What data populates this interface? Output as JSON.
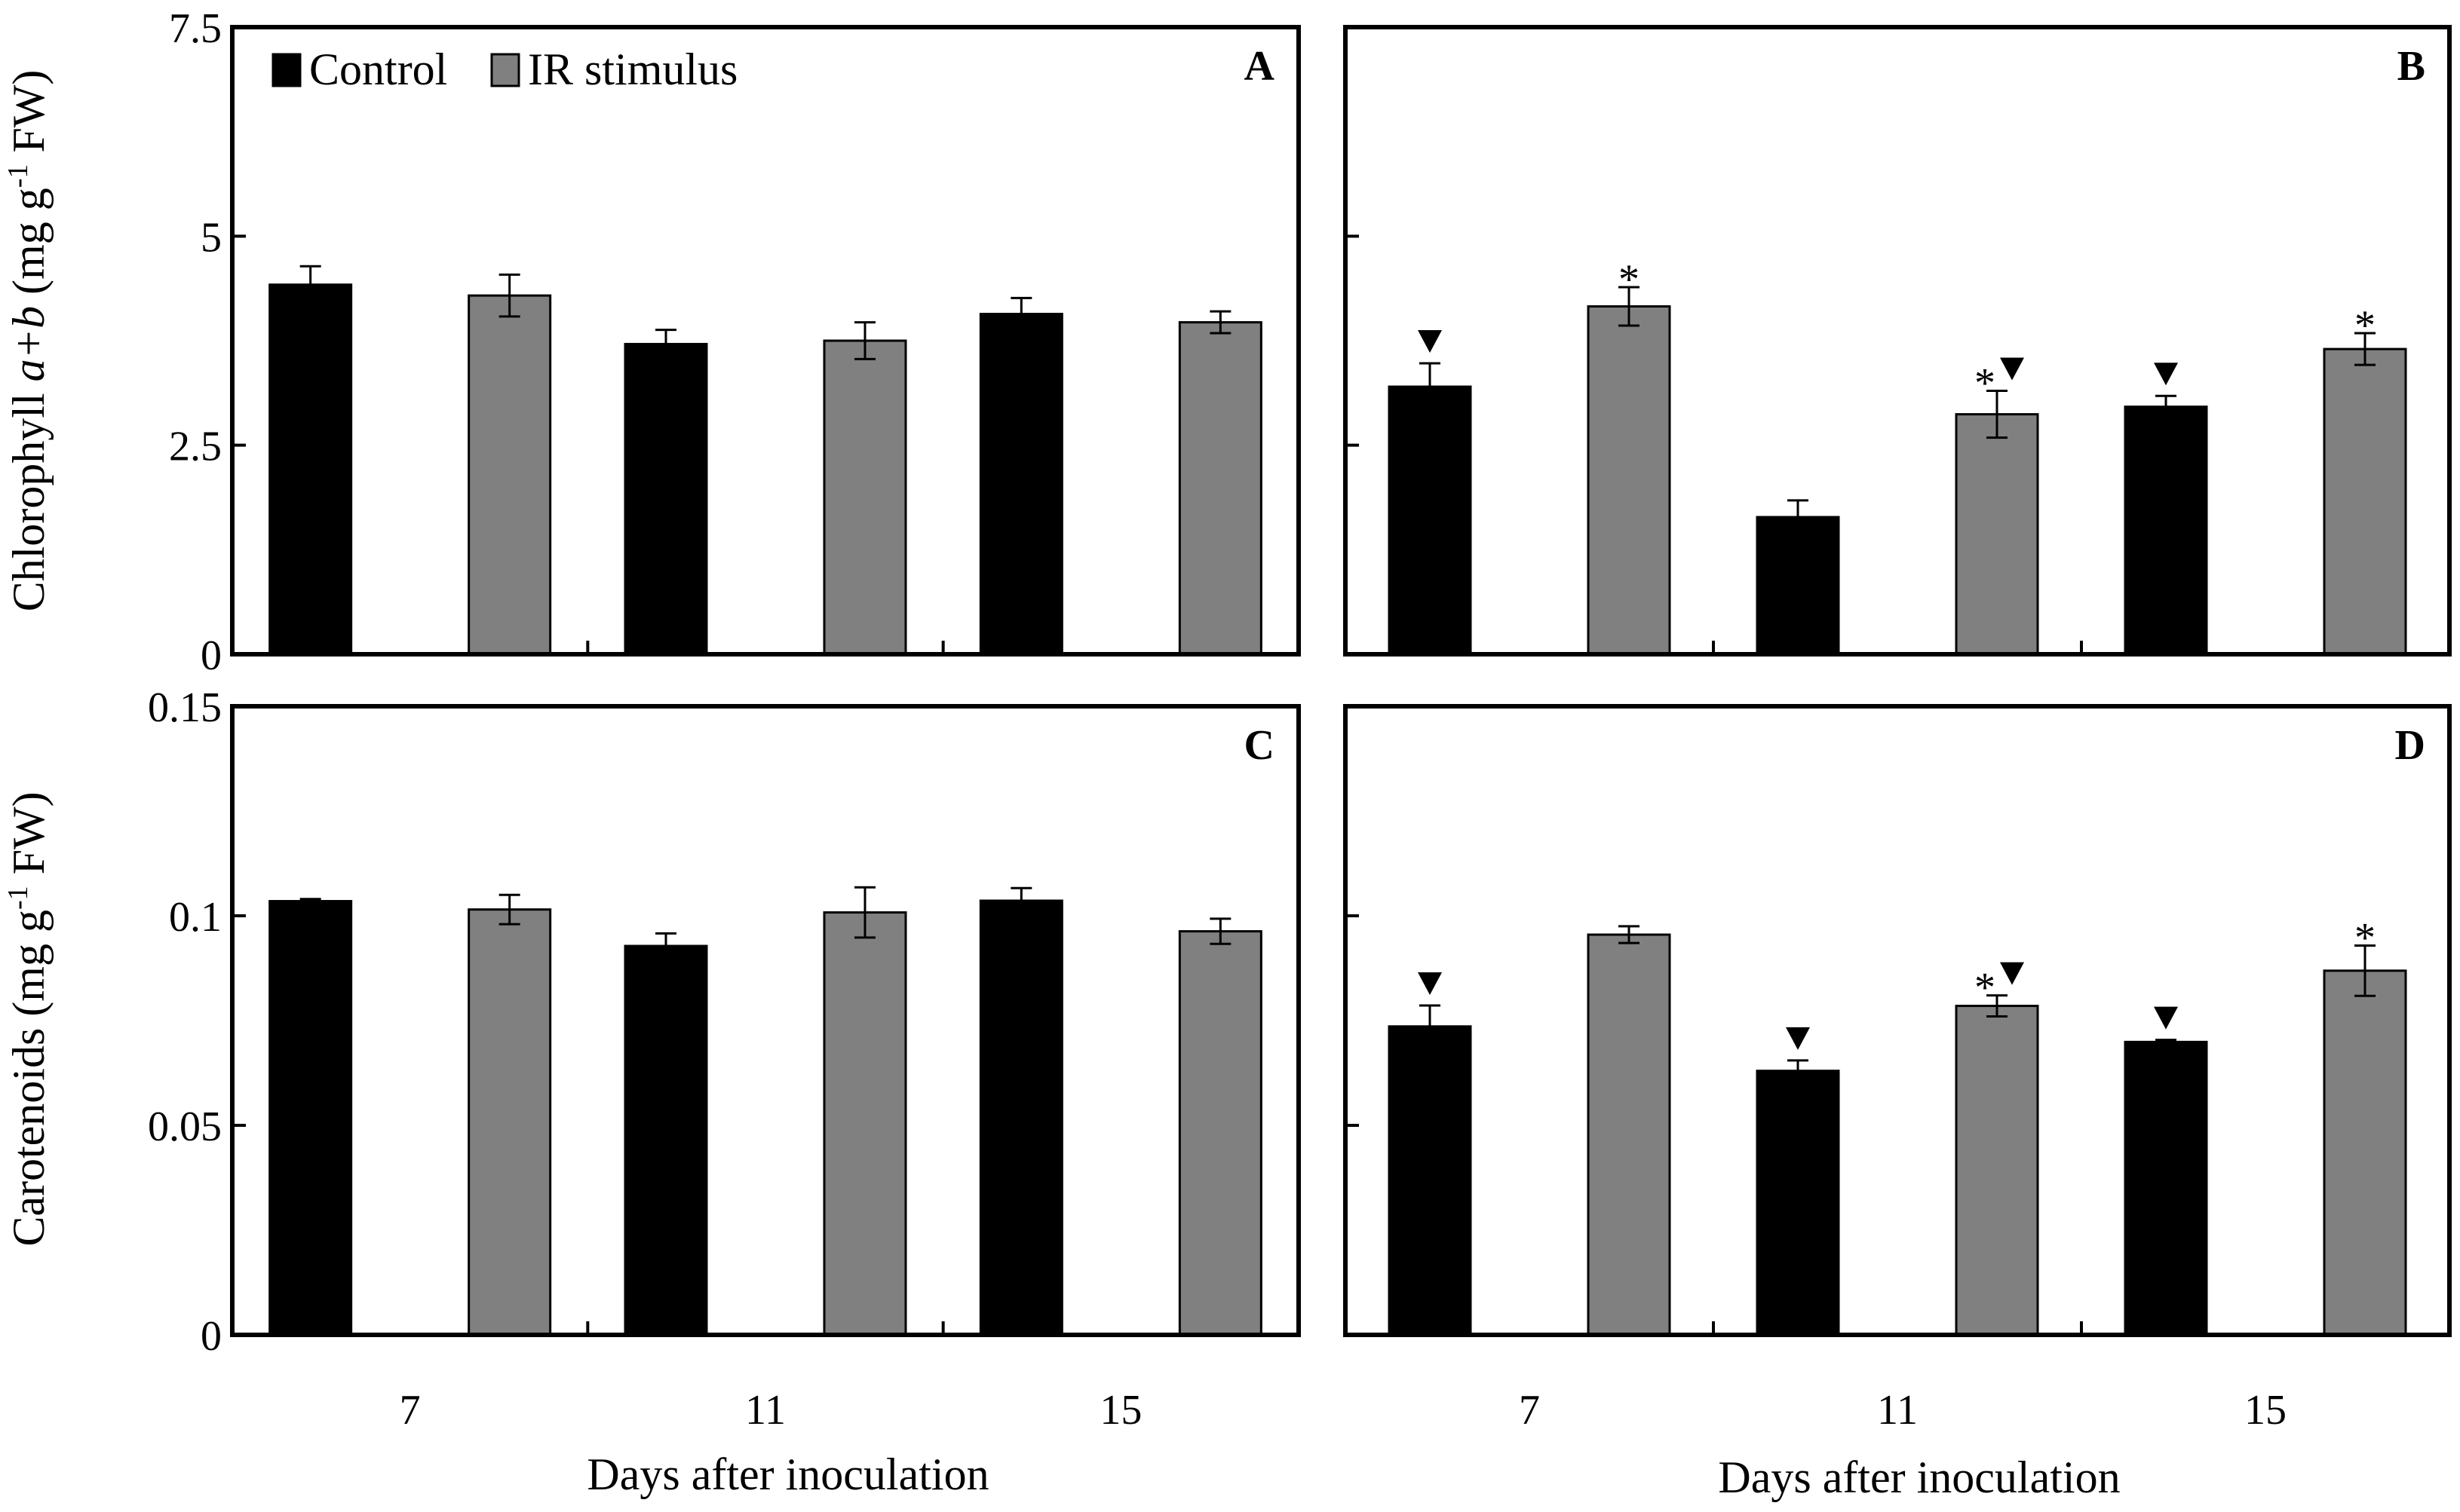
{
  "colors": {
    "control": "#000000",
    "ir_stimulus": "#808080",
    "axis": "#000000",
    "background": "#ffffff"
  },
  "legend": {
    "control": "Control",
    "ir_stimulus": "IR stimulus"
  },
  "y_titles": {
    "chlorophyll": {
      "prefix": "Chlorophyll ",
      "italic": "a+b",
      "mid": " (mg g",
      "sup": "-1",
      "suffix": " FW)"
    },
    "carotenoids": {
      "prefix": "Carotenoids (mg g",
      "sup": "-1",
      "suffix": " FW)"
    }
  },
  "x_title": "Days after inoculation",
  "chart_data": [
    {
      "panel": "A",
      "type": "bar",
      "metric": "chlorophyll",
      "ylim": [
        0,
        7.5
      ],
      "yticks": [
        0,
        2.5,
        5,
        7.5
      ],
      "ytick_labels": [
        "0",
        "2.5",
        "5",
        "7.5"
      ],
      "categories": [
        "7",
        "11",
        "15"
      ],
      "show_xlabels": false,
      "series": [
        {
          "name": "Control",
          "values": [
            4.42,
            3.71,
            4.07
          ],
          "errors": [
            0.22,
            0.17,
            0.19
          ],
          "marks": [
            "",
            "",
            ""
          ]
        },
        {
          "name": "IR stimulus",
          "values": [
            4.29,
            3.75,
            3.97
          ],
          "errors": [
            0.25,
            0.22,
            0.13
          ],
          "marks": [
            "",
            "",
            ""
          ]
        }
      ]
    },
    {
      "panel": "B",
      "type": "bar",
      "metric": "chlorophyll",
      "ylim": [
        0,
        7.5
      ],
      "yticks": [
        0,
        2.5,
        5,
        7.5
      ],
      "ytick_labels": [],
      "categories": [
        "7",
        "11",
        "15"
      ],
      "show_xlabels": false,
      "series": [
        {
          "name": "Control",
          "values": [
            3.2,
            1.64,
            2.96
          ],
          "errors": [
            0.28,
            0.2,
            0.13
          ],
          "marks": [
            "▼",
            "",
            "▼"
          ]
        },
        {
          "name": "IR stimulus",
          "values": [
            4.16,
            2.87,
            3.65
          ],
          "errors": [
            0.23,
            0.28,
            0.19
          ],
          "marks": [
            "*",
            "*▼",
            "*"
          ]
        }
      ]
    },
    {
      "panel": "C",
      "type": "bar",
      "metric": "carotenoids",
      "ylim": [
        0,
        0.15
      ],
      "yticks": [
        0,
        0.05,
        0.1,
        0.15
      ],
      "ytick_labels": [
        "0",
        "0.05",
        "0.1",
        "0.15"
      ],
      "categories": [
        "7",
        "11",
        "15"
      ],
      "show_xlabels": true,
      "series": [
        {
          "name": "Control",
          "values": [
            0.1035,
            0.0928,
            0.1036
          ],
          "errors": [
            0.0005,
            0.003,
            0.003
          ],
          "marks": [
            "",
            "",
            ""
          ]
        },
        {
          "name": "IR stimulus",
          "values": [
            0.1015,
            0.1008,
            0.0963
          ],
          "errors": [
            0.0035,
            0.006,
            0.003
          ],
          "marks": [
            "",
            "",
            ""
          ]
        }
      ]
    },
    {
      "panel": "D",
      "type": "bar",
      "metric": "carotenoids",
      "ylim": [
        0,
        0.15
      ],
      "yticks": [
        0,
        0.05,
        0.1,
        0.15
      ],
      "ytick_labels": [],
      "categories": [
        "7",
        "11",
        "15"
      ],
      "show_xlabels": true,
      "series": [
        {
          "name": "Control",
          "values": [
            0.0736,
            0.063,
            0.0699
          ],
          "errors": [
            0.005,
            0.0025,
            0.0005
          ],
          "marks": [
            "▼",
            "▼",
            "▼"
          ]
        },
        {
          "name": "IR stimulus",
          "values": [
            0.0955,
            0.0785,
            0.0869
          ],
          "errors": [
            0.002,
            0.0025,
            0.006
          ],
          "marks": [
            "",
            "*▼",
            "*"
          ]
        }
      ]
    }
  ]
}
